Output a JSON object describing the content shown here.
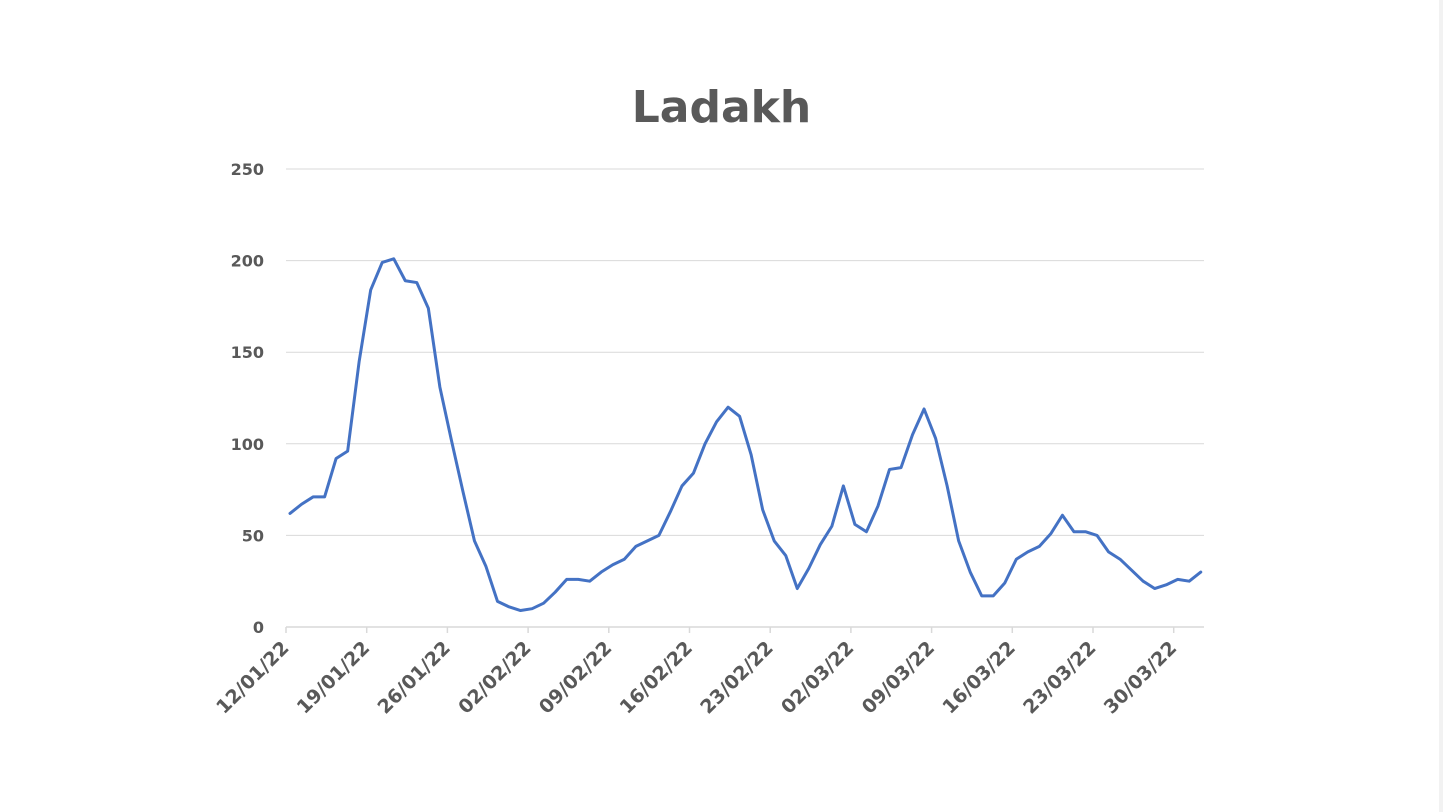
{
  "chart_data": {
    "type": "line",
    "title": "Ladakh",
    "xlabel": "",
    "ylabel": "",
    "ylim": [
      0,
      250
    ],
    "yticks": [
      0,
      50,
      100,
      150,
      200,
      250
    ],
    "grid": true,
    "legend": "none",
    "x_tick_labels": [
      "12/01/22",
      "19/01/22",
      "26/01/22",
      "02/02/22",
      "09/02/22",
      "16/02/22",
      "23/02/22",
      "02/03/22",
      "09/03/22",
      "16/03/22",
      "23/03/22",
      "30/03/22"
    ],
    "x_start": "12/01/22",
    "x_end": "31/03/22",
    "colors": {
      "line": "#4472C4",
      "grid": "#d9d9d9",
      "text": "#595959"
    },
    "series": [
      {
        "values": [
          62,
          67,
          71,
          71,
          92,
          96,
          145,
          184,
          199,
          201,
          189,
          188,
          174,
          131,
          102,
          74,
          47,
          33,
          14,
          11,
          9,
          10,
          13,
          19,
          26,
          26,
          25,
          30,
          34,
          37,
          44,
          47,
          50,
          63,
          77,
          84,
          100,
          112,
          120,
          115,
          94,
          64,
          47,
          39,
          21,
          32,
          45,
          55,
          77,
          56,
          52,
          66,
          86,
          87,
          105,
          119,
          103,
          77,
          47,
          30,
          17,
          17,
          24,
          37,
          41,
          44,
          51,
          61,
          52,
          52,
          50,
          41,
          37,
          31,
          25,
          21,
          23,
          26,
          25,
          30
        ]
      }
    ]
  }
}
